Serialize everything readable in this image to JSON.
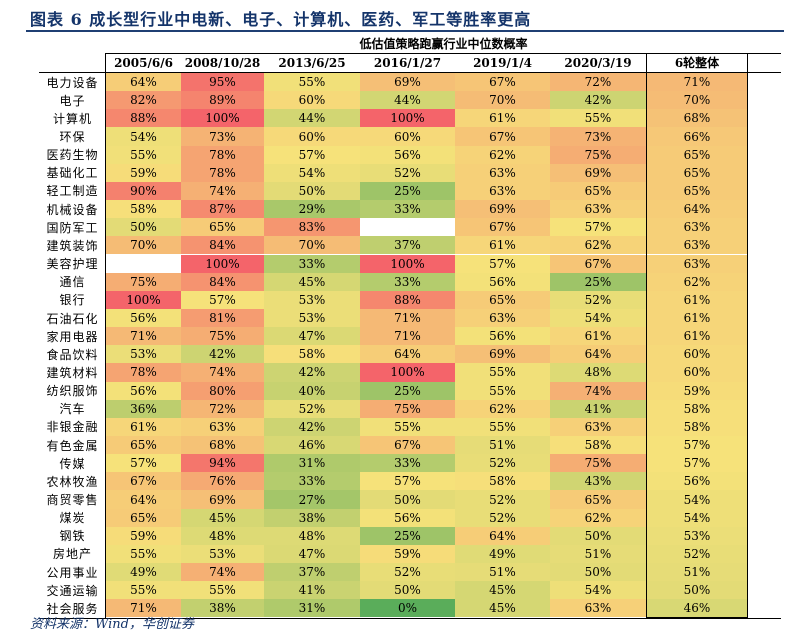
{
  "title": "图表 6   成长型行业中电新、电子、计算机、医药、军工等胜率更高",
  "source": "资料来源：Wind，华创证券",
  "chart_data": {
    "type": "heatmap",
    "header_group": "低估值策略跑赢行业中位数概率",
    "columns": [
      "2005/6/6",
      "2008/10/28",
      "2013/6/25",
      "2016/1/27",
      "2019/1/4",
      "2020/3/19",
      "6轮整体"
    ],
    "rows": [
      {
        "name": "电力设备",
        "values": [
          "64%",
          "95%",
          "55%",
          "69%",
          "67%",
          "72%",
          "71%"
        ]
      },
      {
        "name": "电子",
        "values": [
          "82%",
          "89%",
          "60%",
          "44%",
          "70%",
          "42%",
          "70%"
        ]
      },
      {
        "name": "计算机",
        "values": [
          "88%",
          "100%",
          "44%",
          "100%",
          "61%",
          "55%",
          "68%"
        ]
      },
      {
        "name": "环保",
        "values": [
          "54%",
          "73%",
          "60%",
          "60%",
          "67%",
          "73%",
          "66%"
        ]
      },
      {
        "name": "医药生物",
        "values": [
          "55%",
          "78%",
          "57%",
          "56%",
          "62%",
          "75%",
          "65%"
        ]
      },
      {
        "name": "基础化工",
        "values": [
          "59%",
          "78%",
          "54%",
          "52%",
          "63%",
          "69%",
          "65%"
        ]
      },
      {
        "name": "轻工制造",
        "values": [
          "90%",
          "74%",
          "50%",
          "25%",
          "63%",
          "65%",
          "65%"
        ]
      },
      {
        "name": "机械设备",
        "values": [
          "58%",
          "87%",
          "29%",
          "33%",
          "69%",
          "63%",
          "64%"
        ]
      },
      {
        "name": "国防军工",
        "values": [
          "50%",
          "65%",
          "83%",
          "",
          "67%",
          "57%",
          "63%"
        ]
      },
      {
        "name": "建筑装饰",
        "values": [
          "70%",
          "84%",
          "70%",
          "37%",
          "61%",
          "62%",
          "63%"
        ]
      },
      {
        "name": "美容护理",
        "values": [
          "",
          "100%",
          "33%",
          "100%",
          "57%",
          "67%",
          "63%"
        ]
      },
      {
        "name": "通信",
        "values": [
          "75%",
          "84%",
          "45%",
          "33%",
          "56%",
          "25%",
          "62%"
        ]
      },
      {
        "name": "银行",
        "values": [
          "100%",
          "57%",
          "53%",
          "88%",
          "65%",
          "52%",
          "61%"
        ]
      },
      {
        "name": "石油石化",
        "values": [
          "56%",
          "81%",
          "53%",
          "71%",
          "63%",
          "54%",
          "61%"
        ]
      },
      {
        "name": "家用电器",
        "values": [
          "71%",
          "75%",
          "47%",
          "71%",
          "56%",
          "61%",
          "61%"
        ]
      },
      {
        "name": "食品饮料",
        "values": [
          "53%",
          "42%",
          "58%",
          "64%",
          "69%",
          "64%",
          "60%"
        ]
      },
      {
        "name": "建筑材料",
        "values": [
          "78%",
          "74%",
          "42%",
          "100%",
          "55%",
          "48%",
          "60%"
        ]
      },
      {
        "name": "纺织服饰",
        "values": [
          "56%",
          "80%",
          "40%",
          "25%",
          "55%",
          "74%",
          "59%"
        ]
      },
      {
        "name": "汽车",
        "values": [
          "36%",
          "72%",
          "52%",
          "75%",
          "62%",
          "41%",
          "58%"
        ]
      },
      {
        "name": "非银金融",
        "values": [
          "61%",
          "63%",
          "42%",
          "55%",
          "55%",
          "63%",
          "58%"
        ]
      },
      {
        "name": "有色金属",
        "values": [
          "65%",
          "68%",
          "46%",
          "67%",
          "51%",
          "58%",
          "57%"
        ]
      },
      {
        "name": "传媒",
        "values": [
          "57%",
          "94%",
          "31%",
          "33%",
          "52%",
          "75%",
          "57%"
        ]
      },
      {
        "name": "农林牧渔",
        "values": [
          "67%",
          "76%",
          "33%",
          "57%",
          "58%",
          "43%",
          "56%"
        ]
      },
      {
        "name": "商贸零售",
        "values": [
          "64%",
          "69%",
          "27%",
          "50%",
          "52%",
          "65%",
          "54%"
        ]
      },
      {
        "name": "煤炭",
        "values": [
          "65%",
          "45%",
          "38%",
          "56%",
          "52%",
          "62%",
          "54%"
        ]
      },
      {
        "name": "钢铁",
        "values": [
          "59%",
          "48%",
          "48%",
          "25%",
          "64%",
          "50%",
          "53%"
        ]
      },
      {
        "name": "房地产",
        "values": [
          "55%",
          "53%",
          "47%",
          "59%",
          "49%",
          "51%",
          "52%"
        ]
      },
      {
        "name": "公用事业",
        "values": [
          "49%",
          "74%",
          "37%",
          "52%",
          "51%",
          "50%",
          "51%"
        ]
      },
      {
        "name": "交通运输",
        "values": [
          "55%",
          "55%",
          "41%",
          "50%",
          "45%",
          "54%",
          "50%"
        ]
      },
      {
        "name": "社会服务",
        "values": [
          "71%",
          "38%",
          "31%",
          "0%",
          "45%",
          "63%",
          "46%"
        ]
      }
    ],
    "colors": {
      "low": "#5aad5a",
      "mid": "#f6e27a",
      "high": "#f4646a"
    }
  }
}
